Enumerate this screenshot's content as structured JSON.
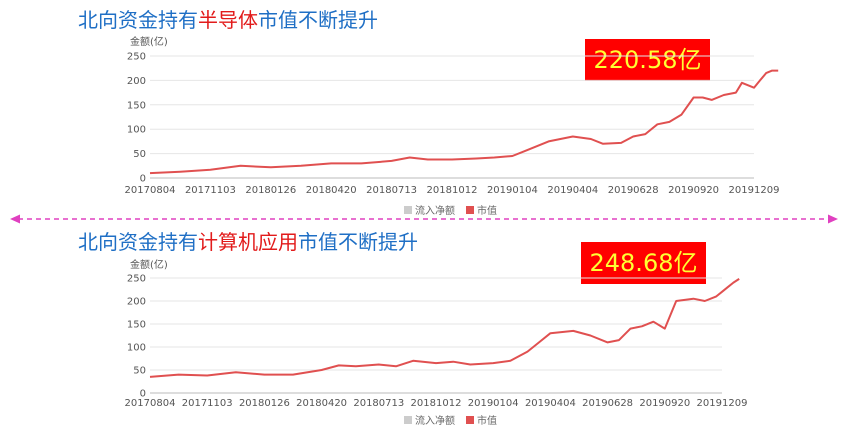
{
  "charts": [
    {
      "title_prefix": "北向资金持有",
      "title_highlight": "半导体",
      "title_suffix": "市值不断提升",
      "value_box": "220.58亿"
    },
    {
      "title_prefix": "北向资金持有",
      "title_highlight": "计算机应用",
      "title_suffix": "市值不断提升",
      "value_box": "248.68亿"
    }
  ],
  "colors": {
    "title": "#1f6fc5",
    "highlight": "#e21b1b",
    "line": "#e05050",
    "box_bg": "#ff0000",
    "box_text": "#ffff33",
    "divider": "#e040c0",
    "legend_grey": "#cccccc"
  },
  "chart_data": [
    {
      "type": "line",
      "ylabel": "金额(亿)",
      "ylim": [
        0,
        250
      ],
      "yticks": [
        "0",
        "50",
        "100",
        "150",
        "200",
        "250"
      ],
      "categories": [
        "20170804",
        "20171103",
        "20180126",
        "20180420",
        "20180713",
        "20181012",
        "20190104",
        "20190404",
        "20190628",
        "20190920",
        "20191209"
      ],
      "legend": [
        "流入净额",
        "市值"
      ],
      "series": [
        {
          "name": "市值",
          "x": [
            0,
            0.5,
            1,
            1.5,
            2,
            2.5,
            3,
            3.5,
            4,
            4.3,
            4.6,
            5,
            5.4,
            5.7,
            6,
            6.2,
            6.6,
            7,
            7.3,
            7.5,
            7.8,
            8,
            8.2,
            8.4,
            8.6,
            8.8,
            9,
            9.15,
            9.3,
            9.5,
            9.7,
            9.8,
            10,
            10.1,
            10.2,
            10.3,
            10.4
          ],
          "values": [
            10,
            13,
            17,
            25,
            22,
            25,
            30,
            30,
            35,
            42,
            38,
            38,
            40,
            42,
            45,
            55,
            75,
            85,
            80,
            70,
            72,
            85,
            90,
            110,
            115,
            130,
            165,
            165,
            160,
            170,
            175,
            195,
            185,
            200,
            215,
            220,
            220
          ]
        }
      ]
    },
    {
      "type": "line",
      "ylabel": "金额(亿)",
      "ylim": [
        0,
        250
      ],
      "yticks": [
        "0",
        "50",
        "100",
        "150",
        "200",
        "250"
      ],
      "categories": [
        "20170804",
        "20171103",
        "20180126",
        "20180420",
        "20180713",
        "20181012",
        "20190104",
        "20190404",
        "20190628",
        "20190920",
        "20191209"
      ],
      "legend": [
        "流入净额",
        "市值"
      ],
      "series": [
        {
          "name": "市值",
          "x": [
            0,
            0.5,
            1,
            1.5,
            2,
            2.5,
            3,
            3.3,
            3.6,
            4,
            4.3,
            4.6,
            5,
            5.3,
            5.6,
            6,
            6.3,
            6.6,
            6.8,
            7,
            7.4,
            7.7,
            8,
            8.2,
            8.4,
            8.6,
            8.8,
            9,
            9.2,
            9.5,
            9.7,
            9.9,
            10,
            10.1,
            10.2,
            10.3
          ],
          "values": [
            35,
            40,
            38,
            45,
            40,
            40,
            50,
            60,
            58,
            62,
            58,
            70,
            65,
            68,
            62,
            65,
            70,
            90,
            110,
            130,
            135,
            125,
            110,
            115,
            140,
            145,
            155,
            140,
            200,
            205,
            200,
            210,
            220,
            230,
            240,
            248
          ]
        }
      ]
    }
  ]
}
